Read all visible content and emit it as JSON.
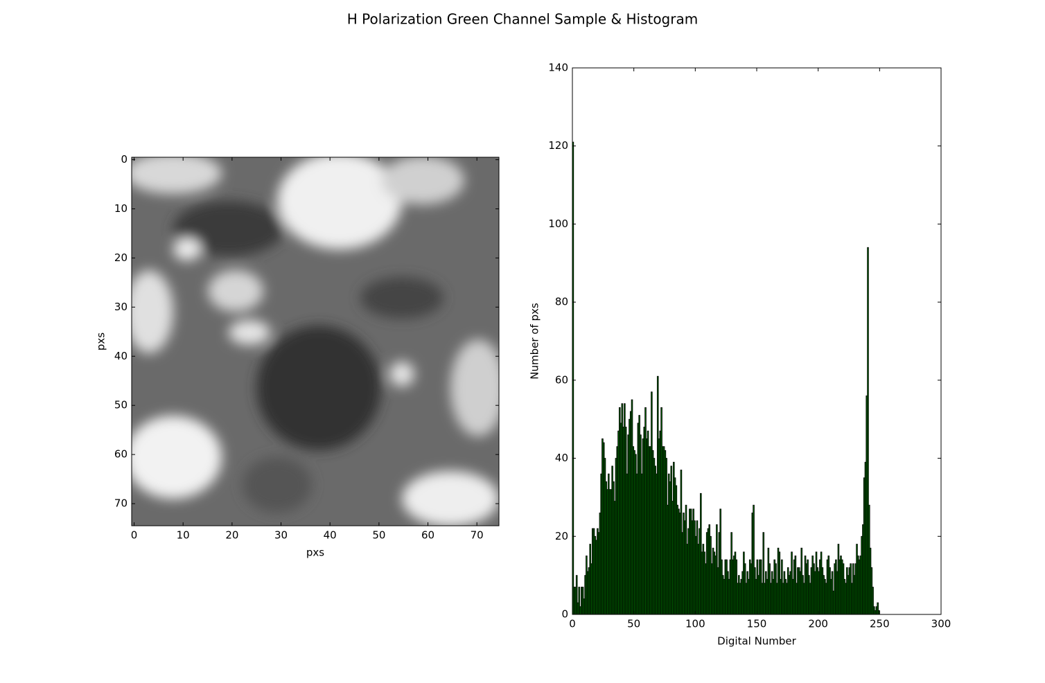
{
  "title": "H Polarization Green Channel Sample & Histogram",
  "chart_data": [
    {
      "type": "image",
      "cmap": "gray",
      "xlabel": "pxs",
      "ylabel": "pxs",
      "xlim": [
        -0.5,
        74.5
      ],
      "ylim": [
        74.5,
        -0.5
      ],
      "xticks": [
        0,
        10,
        20,
        30,
        40,
        50,
        60,
        70
      ],
      "yticks": [
        0,
        10,
        20,
        30,
        40,
        50,
        60,
        70
      ]
    },
    {
      "type": "histogram",
      "xlabel": "Digital Number",
      "ylabel": "Number of pxs",
      "color": "#006400",
      "edgecolor": "#000000",
      "xlim": [
        0,
        300
      ],
      "ylim": [
        0,
        140
      ],
      "xticks": [
        0,
        50,
        100,
        150,
        200,
        250,
        300
      ],
      "yticks": [
        0,
        20,
        40,
        60,
        80,
        100,
        120,
        140
      ],
      "bins": [
        0,
        1,
        2,
        3,
        4,
        5,
        6,
        7,
        8,
        9,
        10,
        11,
        12,
        13,
        14,
        15,
        16,
        17,
        18,
        19,
        20,
        21,
        22,
        23,
        24,
        25,
        26,
        27,
        28,
        29,
        30,
        31,
        32,
        33,
        34,
        35,
        36,
        37,
        38,
        39,
        40,
        41,
        42,
        43,
        44,
        45,
        46,
        47,
        48,
        49,
        50,
        51,
        52,
        53,
        54,
        55,
        56,
        57,
        58,
        59,
        60,
        61,
        62,
        63,
        64,
        65,
        66,
        67,
        68,
        69,
        70,
        71,
        72,
        73,
        74,
        75,
        76,
        77,
        78,
        79,
        80,
        81,
        82,
        83,
        84,
        85,
        86,
        87,
        88,
        89,
        90,
        91,
        92,
        93,
        94,
        95,
        96,
        97,
        98,
        99,
        100,
        101,
        102,
        103,
        104,
        105,
        106,
        107,
        108,
        109,
        110,
        111,
        112,
        113,
        114,
        115,
        116,
        117,
        118,
        119,
        120,
        121,
        122,
        123,
        124,
        125,
        126,
        127,
        128,
        129,
        130,
        131,
        132,
        133,
        134,
        135,
        136,
        137,
        138,
        139,
        140,
        141,
        142,
        143,
        144,
        145,
        146,
        147,
        148,
        149,
        150,
        151,
        152,
        153,
        154,
        155,
        156,
        157,
        158,
        159,
        160,
        161,
        162,
        163,
        164,
        165,
        166,
        167,
        168,
        169,
        170,
        171,
        172,
        173,
        174,
        175,
        176,
        177,
        178,
        179,
        180,
        181,
        182,
        183,
        184,
        185,
        186,
        187,
        188,
        189,
        190,
        191,
        192,
        193,
        194,
        195,
        196,
        197,
        198,
        199,
        200,
        201,
        202,
        203,
        204,
        205,
        206,
        207,
        208,
        209,
        210,
        211,
        212,
        213,
        214,
        215,
        216,
        217,
        218,
        219,
        220,
        221,
        222,
        223,
        224,
        225,
        226,
        227,
        228,
        229,
        230,
        231,
        232,
        233,
        234,
        235,
        236,
        237,
        238,
        239,
        240,
        241,
        242,
        243,
        244,
        245,
        246,
        247,
        248,
        249,
        250,
        251,
        252,
        253,
        254,
        255,
        256
      ],
      "counts": [
        121,
        7,
        7,
        10,
        3,
        7,
        2,
        7,
        7,
        4,
        10,
        15,
        11,
        12,
        18,
        13,
        22,
        22,
        20,
        19,
        22,
        21,
        26,
        36,
        45,
        44,
        40,
        34,
        32,
        36,
        32,
        32,
        38,
        34,
        29,
        40,
        43,
        47,
        53,
        49,
        54,
        48,
        54,
        48,
        36,
        46,
        50,
        52,
        55,
        43,
        42,
        41,
        36,
        49,
        51,
        46,
        36,
        45,
        48,
        53,
        45,
        47,
        43,
        43,
        57,
        42,
        40,
        38,
        36,
        61,
        45,
        47,
        53,
        43,
        43,
        42,
        40,
        28,
        36,
        34,
        38,
        29,
        39,
        35,
        33,
        28,
        27,
        26,
        37,
        21,
        26,
        24,
        28,
        18,
        22,
        27,
        27,
        24,
        27,
        24,
        20,
        24,
        18,
        22,
        31,
        16,
        18,
        16,
        13,
        21,
        22,
        23,
        20,
        13,
        17,
        16,
        15,
        23,
        12,
        21,
        27,
        14,
        10,
        9,
        14,
        14,
        11,
        9,
        14,
        21,
        14,
        15,
        16,
        14,
        8,
        10,
        8,
        9,
        11,
        16,
        13,
        8,
        11,
        9,
        14,
        13,
        26,
        28,
        12,
        9,
        14,
        10,
        14,
        14,
        8,
        21,
        8,
        11,
        9,
        17,
        13,
        8,
        11,
        9,
        14,
        13,
        8,
        17,
        16,
        9,
        14,
        8,
        11,
        9,
        8,
        12,
        10,
        11,
        16,
        9,
        14,
        15,
        8,
        12,
        12,
        11,
        17,
        10,
        8,
        15,
        13,
        14,
        10,
        8,
        12,
        15,
        13,
        11,
        16,
        12,
        11,
        14,
        16,
        12,
        10,
        9,
        8,
        14,
        15,
        12,
        9,
        11,
        6,
        13,
        14,
        11,
        18,
        14,
        15,
        14,
        13,
        9,
        8,
        12,
        10,
        12,
        13,
        8,
        13,
        10,
        13,
        18,
        15,
        14,
        15,
        20,
        23,
        35,
        39,
        56,
        94,
        28,
        17,
        12,
        7,
        2,
        1,
        2,
        3,
        1,
        0,
        0,
        0,
        0,
        0,
        0
      ]
    }
  ]
}
